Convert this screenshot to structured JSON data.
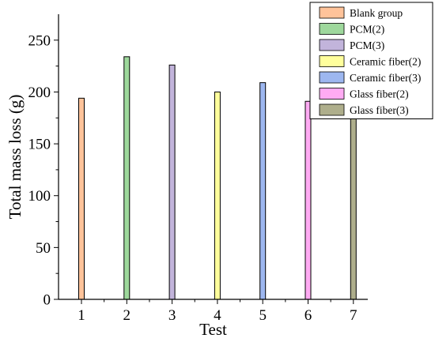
{
  "chart_data": {
    "type": "bar",
    "title": "",
    "xlabel": "Test",
    "ylabel": "Total mass loss (g)",
    "categories": [
      "1",
      "2",
      "3",
      "4",
      "5",
      "6",
      "7"
    ],
    "values": [
      194,
      234,
      226,
      200,
      209,
      191,
      182
    ],
    "ylim": [
      0,
      275
    ],
    "yticks": [
      0,
      50,
      100,
      150,
      200,
      250
    ],
    "grid": false,
    "legend_position": "top-right",
    "series": [
      {
        "name": "Blank group",
        "value": 194,
        "color": "#FFC39A"
      },
      {
        "name": "PCM(2)",
        "value": 234,
        "color": "#9ED89C"
      },
      {
        "name": "PCM(3)",
        "value": 226,
        "color": "#C2B4DB"
      },
      {
        "name": "Ceramic fiber(2)",
        "value": 200,
        "color": "#FFFF9C"
      },
      {
        "name": "Ceramic fiber(3)",
        "value": 209,
        "color": "#9DB7F0"
      },
      {
        "name": "Glass fiber(2)",
        "value": 191,
        "color": "#FFABF3"
      },
      {
        "name": "Glass fiber(3)",
        "value": 182,
        "color": "#AEAE8C"
      }
    ]
  }
}
